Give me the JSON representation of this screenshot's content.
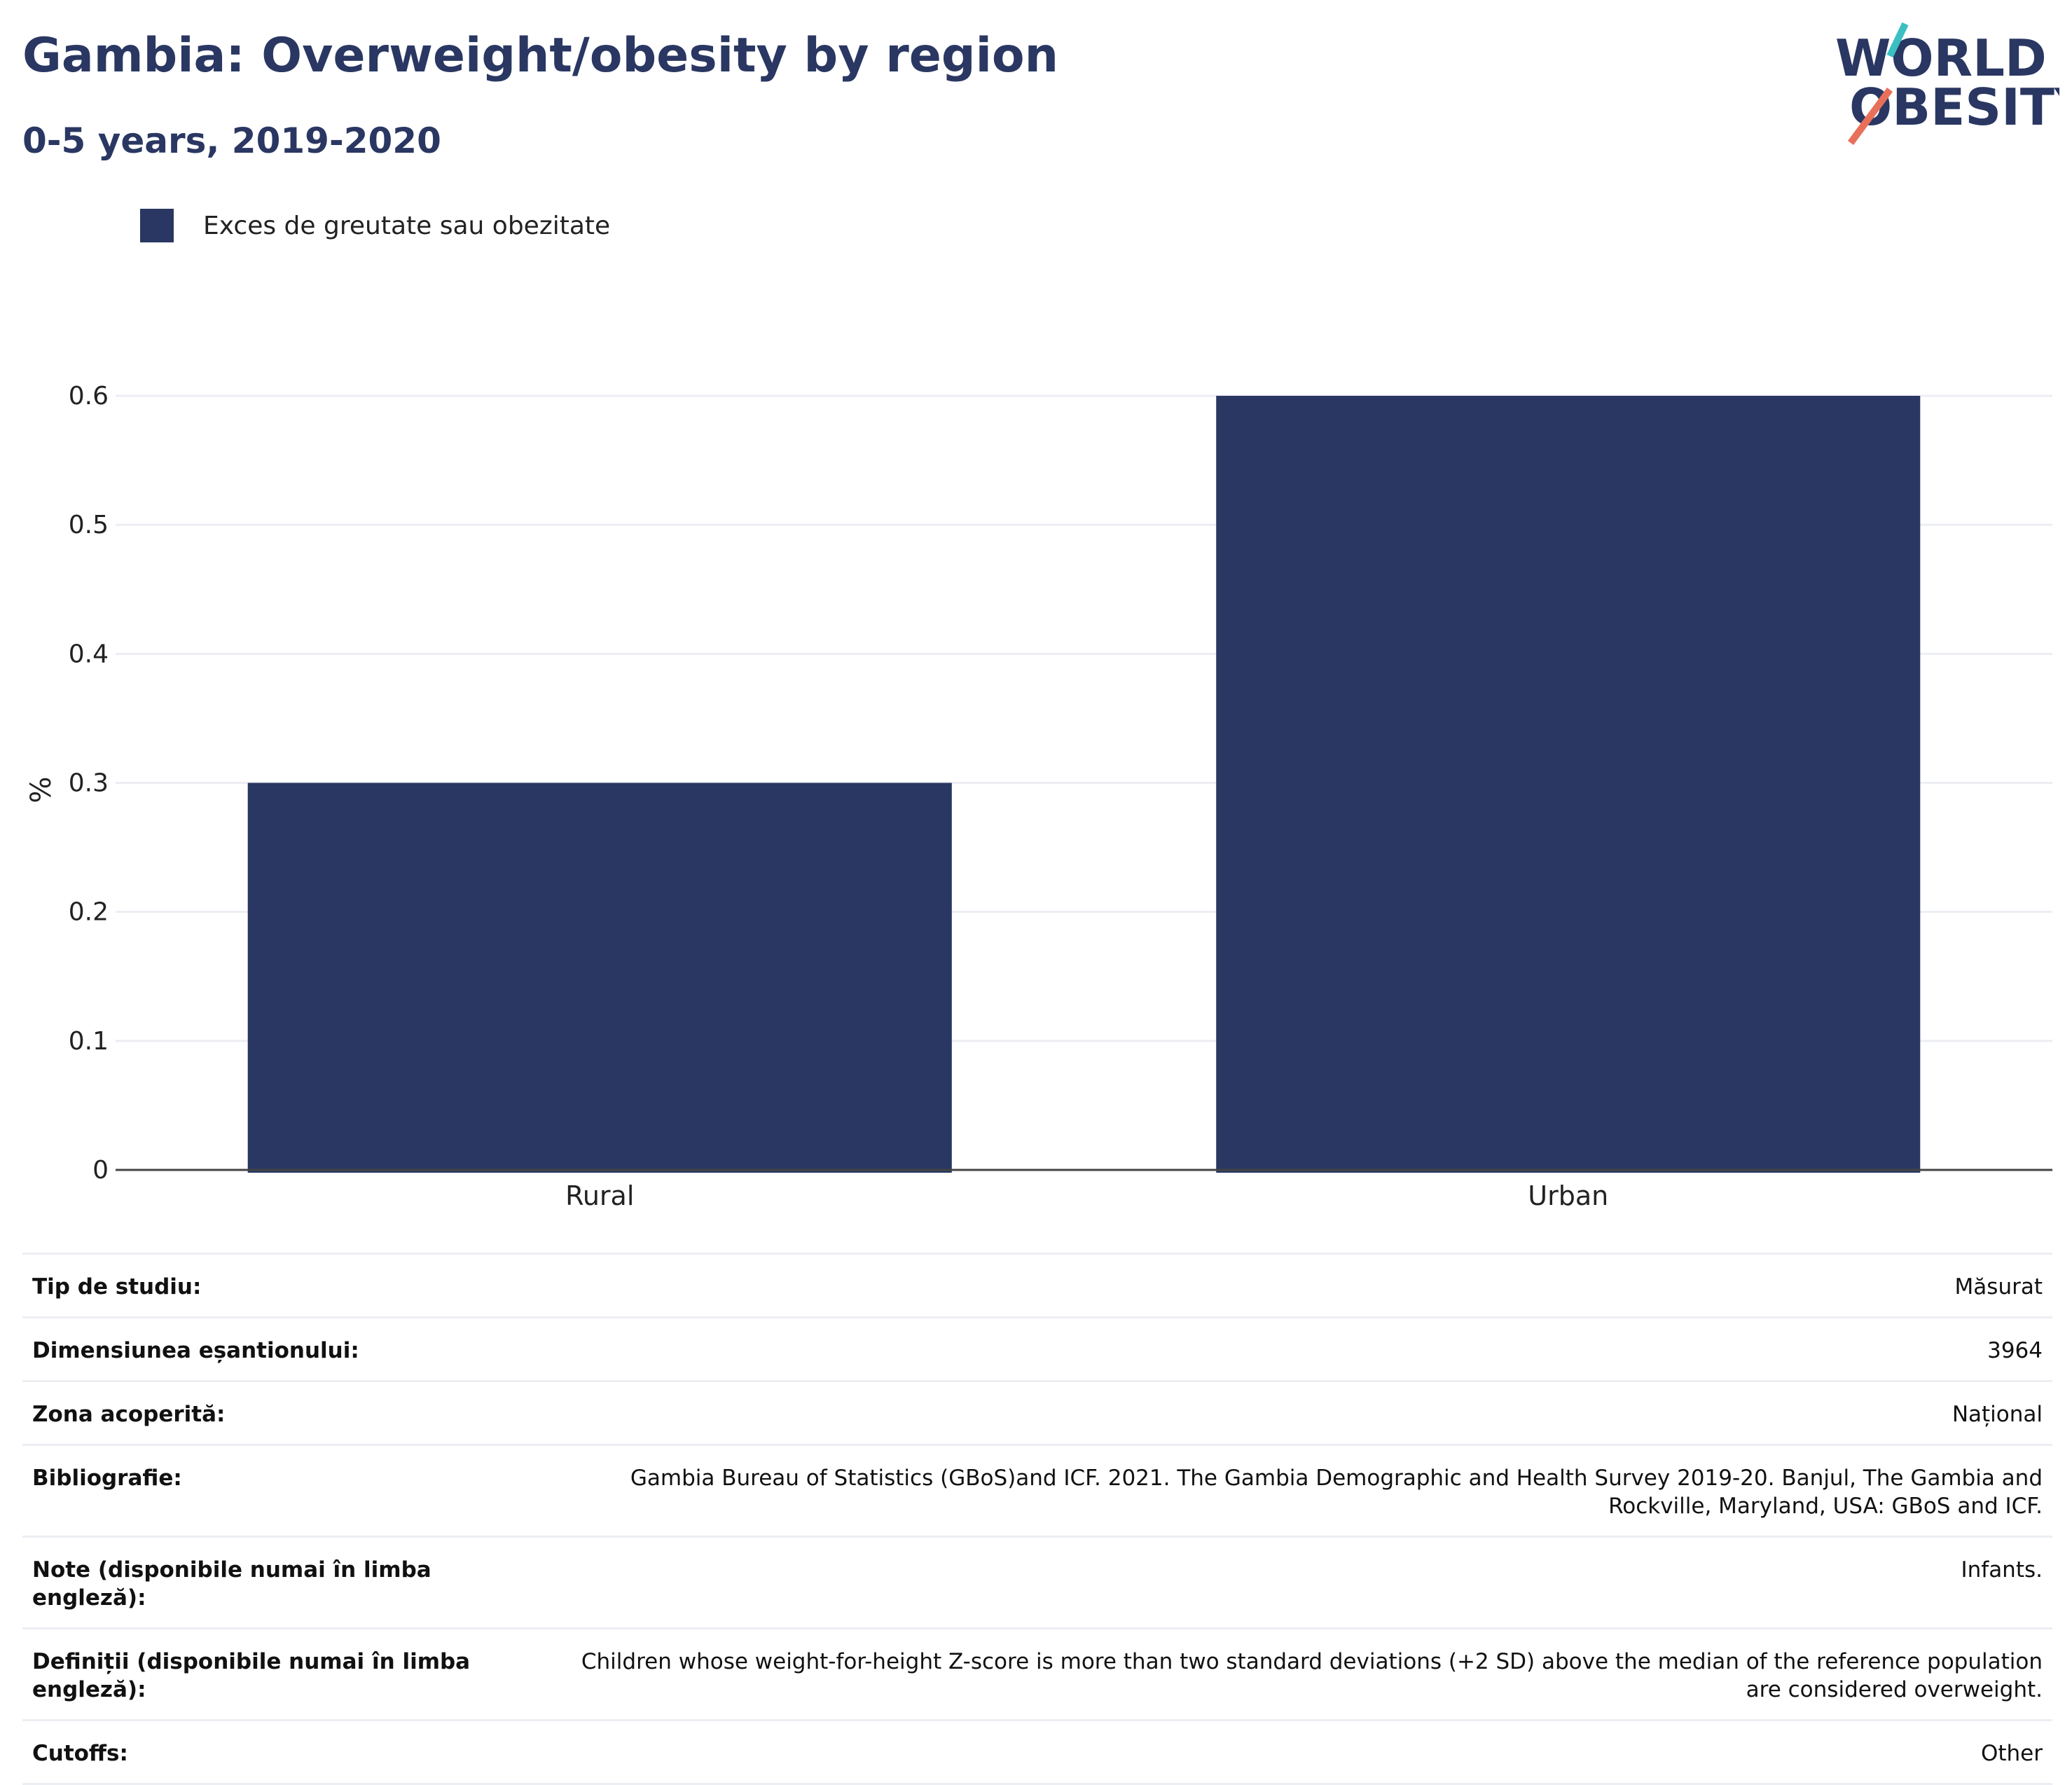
{
  "header": {
    "title": "Gambia: Overweight/obesity by region",
    "subtitle": "0-5 years, 2019-2020"
  },
  "logo": {
    "line1": "WORLD",
    "line2": "OBESITY",
    "colors": {
      "text": "#2a3762",
      "slash_top": "#3bbfc3",
      "slash_bottom": "#e8705a"
    }
  },
  "legend": {
    "label": "Exces de greutate sau obezitate",
    "color": "#2a3762"
  },
  "chart_data": {
    "type": "bar",
    "categories": [
      "Rural",
      "Urban"
    ],
    "series": [
      {
        "name": "Exces de greutate sau obezitate",
        "values": [
          0.3,
          0.6
        ],
        "color": "#2a3762"
      }
    ],
    "ylabel": "%",
    "xlabel": "",
    "ylim": [
      0,
      0.6
    ],
    "yticks": [
      0,
      0.1,
      0.2,
      0.3,
      0.4,
      0.5,
      0.6
    ],
    "ytick_labels": [
      "0",
      "0.1",
      "0.2",
      "0.3",
      "0.4",
      "0.5",
      "0.6"
    ],
    "grid": true,
    "legend_position": "top-left"
  },
  "details": [
    {
      "key": "Tip de studiu:",
      "value": "Măsurat"
    },
    {
      "key": "Dimensiunea eșantionului:",
      "value": "3964"
    },
    {
      "key": "Zona acoperită:",
      "value": "Național"
    },
    {
      "key": "Bibliografie:",
      "value": "Gambia Bureau of Statistics (GBoS)and ICF. 2021. The Gambia Demographic and Health Survey 2019-20. Banjul, The Gambia and Rockville, Maryland, USA: GBoS and ICF."
    },
    {
      "key": "Note (disponibile numai în limba engleză):",
      "value": "Infants."
    },
    {
      "key": "Definiții (disponibile numai în limba engleză):",
      "value": "Children whose weight-for-height Z-score is more than two standard deviations (+2 SD) above the median of the reference population are considered overweight."
    },
    {
      "key": "Cutoffs:",
      "value": "Other"
    }
  ]
}
